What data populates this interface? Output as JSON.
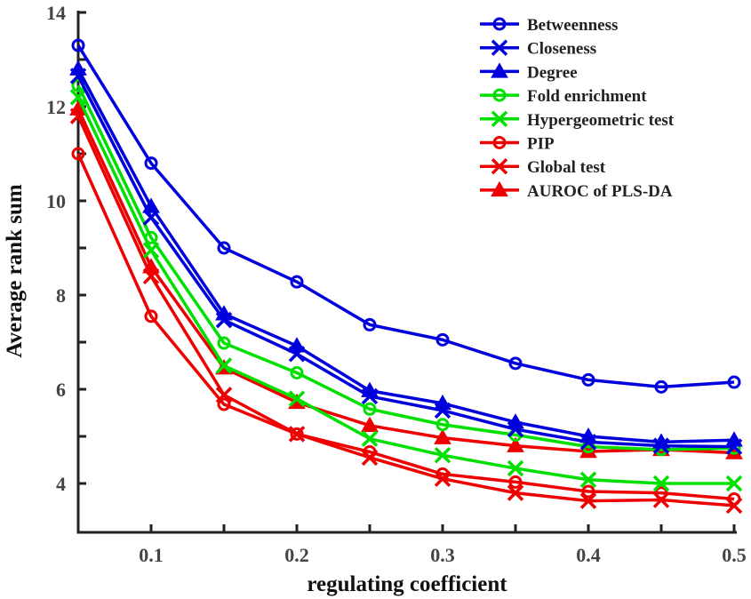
{
  "chart_data": {
    "type": "line",
    "title": "",
    "xlabel": "regulating coefficient",
    "ylabel": "Average rank sum",
    "x": [
      0.05,
      0.1,
      0.15,
      0.2,
      0.25,
      0.3,
      0.35,
      0.4,
      0.45,
      0.5
    ],
    "xlim": [
      0.05,
      0.5
    ],
    "ylim": [
      3,
      14
    ],
    "xticks": [
      0.1,
      0.2,
      0.3,
      0.4,
      0.5
    ],
    "xtick_labels": [
      "0.1",
      "0.2",
      "0.3",
      "0.4",
      "0.5"
    ],
    "xminor_ticks": [
      0.15,
      0.25,
      0.35,
      0.45
    ],
    "yticks": [
      4,
      6,
      8,
      10,
      12,
      14
    ],
    "ytick_labels": [
      "4",
      "6",
      "8",
      "10",
      "12",
      "14"
    ],
    "yminor_ticks": [
      5,
      7,
      9,
      11,
      13
    ],
    "grid": false,
    "legend_position": "top-right",
    "series": [
      {
        "name": "Betweenness",
        "color": "#0000dd",
        "marker": "circle",
        "values": [
          13.3,
          10.8,
          9.0,
          8.28,
          7.37,
          7.05,
          6.55,
          6.2,
          6.05,
          6.15
        ]
      },
      {
        "name": "Closeness",
        "color": "#0000dd",
        "marker": "x",
        "values": [
          12.65,
          9.65,
          7.47,
          6.75,
          5.85,
          5.55,
          5.15,
          4.88,
          4.8,
          4.78
        ]
      },
      {
        "name": "Degree",
        "color": "#0000dd",
        "marker": "triangle",
        "values": [
          12.8,
          9.88,
          7.6,
          6.92,
          5.97,
          5.7,
          5.3,
          5.0,
          4.88,
          4.92
        ]
      },
      {
        "name": "Fold enrichment",
        "color": "#00e000",
        "marker": "circle",
        "values": [
          12.45,
          9.22,
          6.98,
          6.35,
          5.58,
          5.25,
          5.03,
          4.78,
          4.72,
          4.75
        ]
      },
      {
        "name": "Hypergeometric test",
        "color": "#00e000",
        "marker": "x",
        "values": [
          12.2,
          8.95,
          6.5,
          5.8,
          4.95,
          4.6,
          4.32,
          4.08,
          4.0,
          4.0
        ]
      },
      {
        "name": "PIP",
        "color": "#ee0000",
        "marker": "circle",
        "values": [
          11.0,
          7.55,
          5.68,
          5.05,
          4.67,
          4.2,
          4.03,
          3.83,
          3.8,
          3.67
        ]
      },
      {
        "name": "Global test",
        "color": "#ee0000",
        "marker": "x",
        "values": [
          11.8,
          8.4,
          5.88,
          5.05,
          4.55,
          4.1,
          3.8,
          3.63,
          3.65,
          3.53
        ]
      },
      {
        "name": "AUROC of PLS-DA",
        "color": "#ee0000",
        "marker": "triangle",
        "values": [
          11.95,
          8.6,
          6.45,
          5.72,
          5.23,
          4.97,
          4.8,
          4.68,
          4.72,
          4.65
        ]
      }
    ]
  }
}
